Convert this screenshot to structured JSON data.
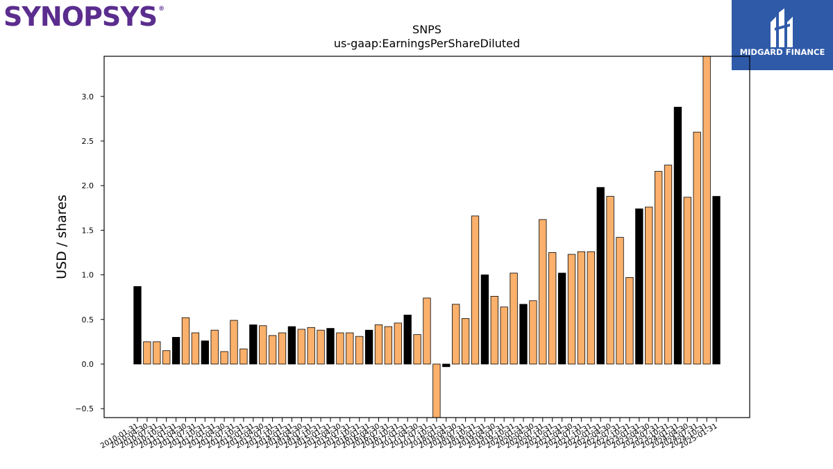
{
  "logos": {
    "left_text": "SYNOPSYS",
    "left_mark": "®",
    "right_text": "MIDGARD FINANCE",
    "right_icon": "midgard-logo-icon"
  },
  "colors": {
    "annual": "#000000",
    "quarterly": "#fbb06b"
  },
  "chart_data": {
    "type": "bar",
    "title": "SNPS",
    "subtitle": "us-gaap:EarningsPerShareDiluted",
    "xlabel": "",
    "ylabel": "USD / shares",
    "ylim": [
      -0.6,
      3.45
    ],
    "yticks": [
      -0.5,
      0.0,
      0.5,
      1.0,
      1.5,
      2.0,
      2.5,
      3.0
    ],
    "ytick_labels": [
      "−0.5",
      "0.0",
      "0.5",
      "1.0",
      "1.5",
      "2.0",
      "2.5",
      "3.0"
    ],
    "grid": false,
    "categories": [
      "2010-01-31",
      "2010-04-30",
      "2010-07-31",
      "2010-10-31",
      "2011-01-31",
      "2011-04-30",
      "2011-07-31",
      "2011-10-31",
      "2012-01-31",
      "2012-04-30",
      "2012-07-31",
      "2012-10-31",
      "2013-01-31",
      "2013-04-30",
      "2013-07-31",
      "2013-10-31",
      "2014-01-31",
      "2014-04-30",
      "2014-07-31",
      "2014-10-31",
      "2015-01-31",
      "2015-04-30",
      "2015-07-31",
      "2015-10-31",
      "2016-01-31",
      "2016-04-30",
      "2016-07-31",
      "2016-10-31",
      "2017-01-31",
      "2017-04-30",
      "2017-07-31",
      "2017-10-31",
      "2018-01-31",
      "2018-04-30",
      "2018-07-31",
      "2018-10-31",
      "2019-01-31",
      "2019-04-30",
      "2019-07-31",
      "2019-10-31",
      "2020-01-31",
      "2020-04-30",
      "2020-07-31",
      "2020-10-31",
      "2021-01-31",
      "2021-04-30",
      "2021-07-31",
      "2021-10-31",
      "2022-01-31",
      "2022-04-30",
      "2022-07-31",
      "2022-10-31",
      "2023-01-31",
      "2023-04-30",
      "2023-07-31",
      "2023-10-31",
      "2024-01-31",
      "2024-04-30",
      "2024-07-31",
      "2024-10-31",
      "2025-01-31"
    ],
    "tick_labels": [
      "2010-01-31",
      "2010-04-30",
      "2010-07-31",
      "2010-10-31",
      "2011-01-31",
      "2011-04-30",
      "2011-07-31",
      "2011-10-31",
      "2012-01-31",
      "2012-04-30",
      "2012-07-31",
      "2012-10-31",
      "2013-01-31",
      "2013-04-30",
      "2013-07-31",
      "2013-10-31",
      "2014-01-31",
      "2014-04-30",
      "2014-07-31",
      "2014-10-31",
      "2015-01-31",
      "2015-04-30",
      "2015-07-31",
      "2015-10-31",
      "2016-01-31",
      "2016-04-30",
      "2016-07-31",
      "2016-10-31",
      "2017-01-31",
      "2017-04-30",
      "2017-07-31",
      "2017-10-31",
      "2018-01-31",
      "2018-04-30",
      "2018-07-31",
      "2018-10-31",
      "2019-01-31",
      "2019-04-30",
      "2019-07-31",
      "2019-10-31",
      "2020-01-31",
      "2020-04-30",
      "2020-07-31",
      "2020-10-31",
      "2021-01-31",
      "2021-04-30",
      "2021-07-31",
      "2021-10-31",
      "2022-01-31",
      "2022-04-30",
      "2022-07-31",
      "2022-10-31",
      "2023-01-31",
      "2023-04-30",
      "2023-07-31",
      "2023-10-31",
      "2024-01-31",
      "2024-04-30",
      "2024-07-31",
      "2024-10-31",
      "2025-01-31"
    ],
    "values": [
      0.87,
      0.25,
      0.25,
      0.15,
      0.3,
      0.52,
      0.35,
      0.26,
      0.38,
      0.14,
      0.49,
      0.17,
      0.44,
      0.43,
      0.32,
      0.35,
      0.42,
      0.39,
      0.41,
      0.38,
      0.4,
      0.35,
      0.35,
      0.31,
      0.38,
      0.44,
      0.42,
      0.46,
      0.55,
      0.33,
      0.74,
      -0.81,
      -0.03,
      0.67,
      0.51,
      1.66,
      1.0,
      0.76,
      0.64,
      1.02,
      0.67,
      0.71,
      1.62,
      1.25,
      1.02,
      1.23,
      1.26,
      1.26,
      1.98,
      1.88,
      1.42,
      0.97,
      1.74,
      1.76,
      2.16,
      2.23,
      2.88,
      1.87,
      2.6,
      3.6,
      1.88
    ],
    "bar_kind": [
      "annual",
      "quarterly",
      "quarterly",
      "quarterly",
      "annual",
      "quarterly",
      "quarterly",
      "annual",
      "quarterly",
      "quarterly",
      "quarterly",
      "quarterly",
      "annual",
      "quarterly",
      "quarterly",
      "quarterly",
      "annual",
      "quarterly",
      "quarterly",
      "quarterly",
      "annual",
      "quarterly",
      "quarterly",
      "quarterly",
      "annual",
      "quarterly",
      "quarterly",
      "quarterly",
      "annual",
      "quarterly",
      "quarterly",
      "quarterly",
      "annual",
      "quarterly",
      "quarterly",
      "quarterly",
      "annual",
      "quarterly",
      "quarterly",
      "quarterly",
      "annual",
      "quarterly",
      "quarterly",
      "quarterly",
      "annual",
      "quarterly",
      "quarterly",
      "quarterly",
      "annual",
      "quarterly",
      "quarterly",
      "quarterly",
      "annual",
      "quarterly",
      "quarterly",
      "quarterly",
      "annual",
      "quarterly",
      "quarterly",
      "quarterly",
      "annual"
    ]
  }
}
